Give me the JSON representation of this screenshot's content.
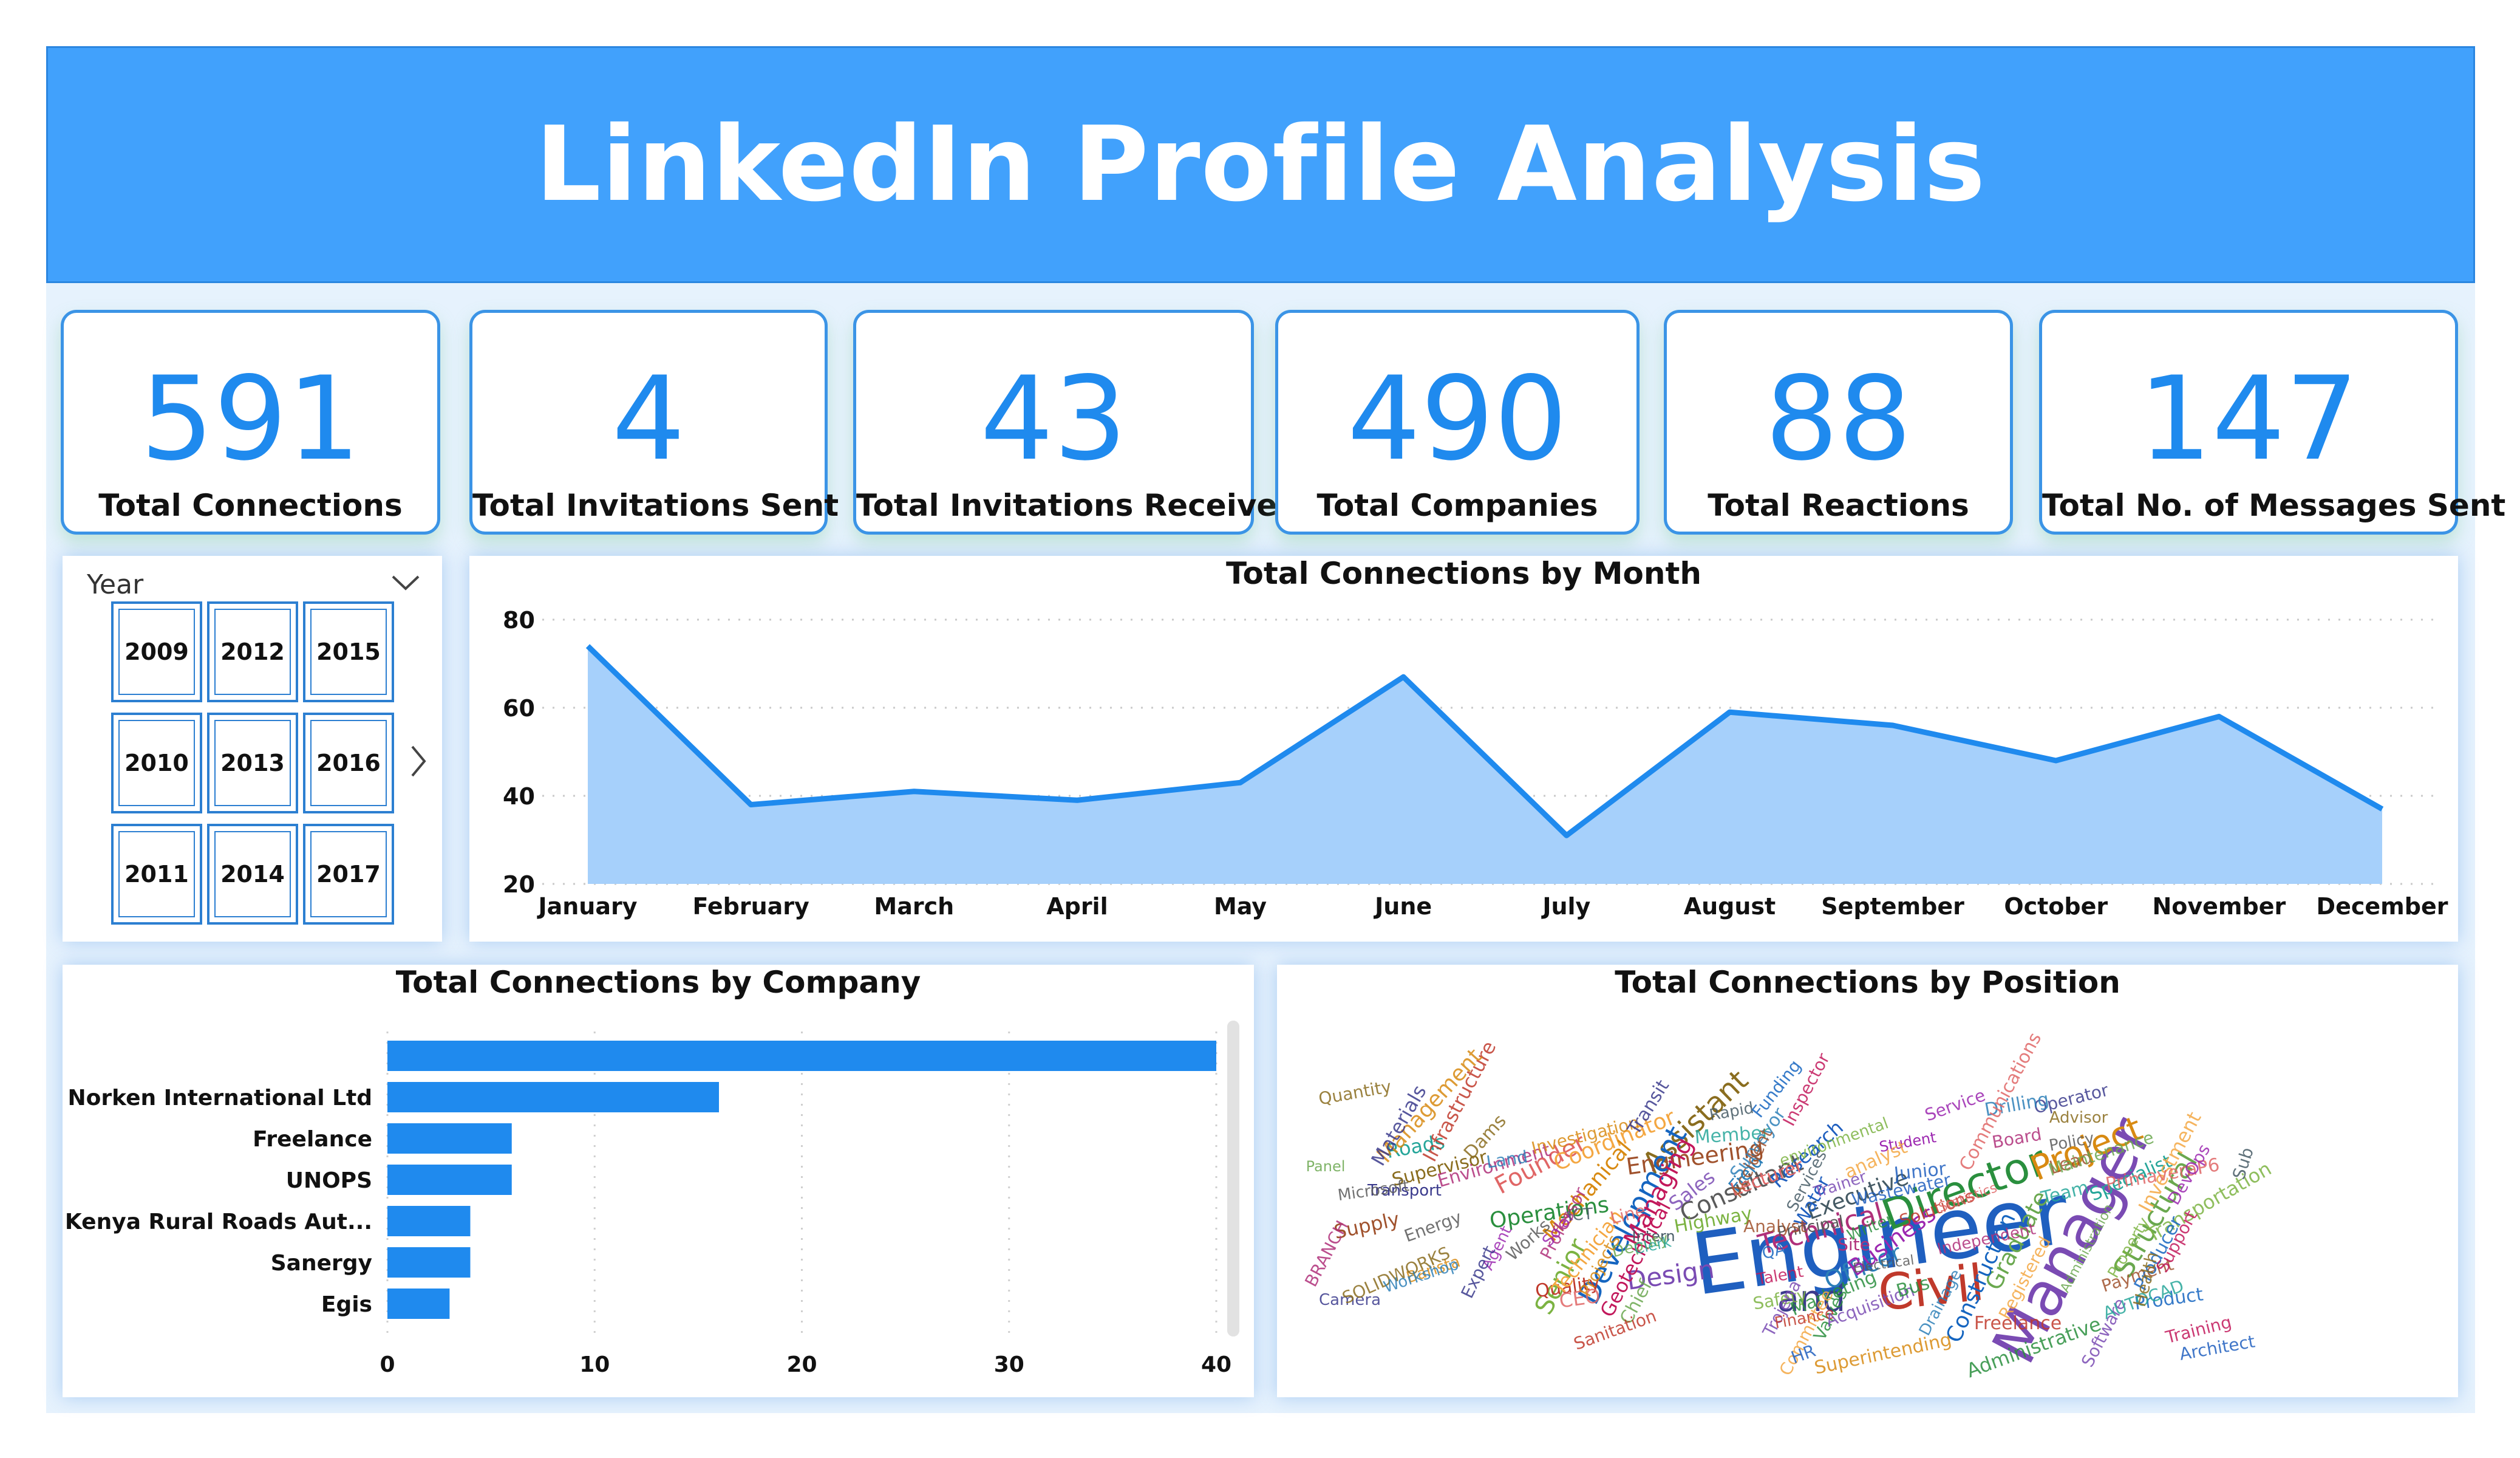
{
  "header": {
    "title": "LinkedIn Profile Analysis"
  },
  "kpis": [
    {
      "value": "591",
      "label": "Total Connections"
    },
    {
      "value": "4",
      "label": "Total Invitations Sent"
    },
    {
      "value": "43",
      "label": "Total Invitations Received"
    },
    {
      "value": "490",
      "label": "Total Companies"
    },
    {
      "value": "88",
      "label": "Total Reactions"
    },
    {
      "value": "147",
      "label": "Total No. of Messages Sent"
    }
  ],
  "slicer": {
    "title": "Year",
    "years": [
      "2009",
      "2012",
      "2015",
      "2010",
      "2013",
      "2016",
      "2011",
      "2014",
      "2017"
    ]
  },
  "colors": {
    "accent": "#1f8aee",
    "header": "#41a1fc",
    "area_fill": "#a6d0fb"
  },
  "chart_data": [
    {
      "type": "area",
      "title": "Total Connections by Month",
      "categories": [
        "January",
        "February",
        "March",
        "April",
        "May",
        "June",
        "July",
        "August",
        "September",
        "October",
        "November",
        "December"
      ],
      "values": [
        74,
        38,
        41,
        39,
        43,
        67,
        31,
        59,
        56,
        48,
        58,
        37
      ],
      "ylim": [
        20,
        80
      ],
      "yticks": [
        "20",
        "40",
        "60",
        "80"
      ],
      "grid": true
    },
    {
      "type": "bar",
      "orientation": "horizontal",
      "title": "Total Connections by Company",
      "categories": [
        "",
        "Norken International Ltd",
        "Freelance",
        "UNOPS",
        "Kenya Rural Roads Aut...",
        "Sanergy",
        "Egis"
      ],
      "values": [
        40,
        16,
        6,
        6,
        4,
        4,
        3
      ],
      "xlim": [
        0,
        40
      ],
      "xticks": [
        "0",
        "10",
        "20",
        "30",
        "40"
      ],
      "grid": true
    }
  ],
  "position_cloud": {
    "title": "Total Connections by Position",
    "words": [
      "Engineer",
      "Manager",
      "Director",
      "Civil",
      "Project",
      "and",
      "Assistant",
      "Officer",
      "Technical",
      "Consultant",
      "Structural",
      "Founder",
      "Business",
      "Executive",
      "Specialist",
      "Engineering",
      "Development",
      "Managing",
      "Senior",
      "Coordinator",
      "Research",
      "Design",
      "Operations",
      "Quality",
      "Mechanical",
      "Transport",
      "Supervisor",
      "Field",
      "Site",
      "Principal",
      "Graduate",
      "Lecturer",
      "Student",
      "Intern",
      "Roads",
      "Supply",
      "Construction",
      "Geotechnical",
      "Highway",
      "Technician",
      "Water",
      "Sales",
      "Marketing",
      "Infrastructure",
      "Management",
      "Materials",
      "Quantity",
      "Surveyor",
      "Environment",
      "Energy",
      "Chief",
      "CEO",
      "Agent",
      "Services",
      "Team",
      "Lead",
      "Product",
      "Training",
      "Transportation",
      "Investment",
      "Architect",
      "Software",
      "Administrative",
      "Freelance",
      "Superintending",
      "Operator",
      "Advisor",
      "Drilling",
      "Board",
      "Policy",
      "Maintenance",
      "Communications",
      "Service",
      "Rapid",
      "Member",
      "Accident",
      "Funding",
      "Inspector",
      "environmental",
      "analyst",
      "Junior",
      "Trainer",
      "Writer",
      "Solutions",
      "Investigation",
      "Transit",
      "Dams",
      "Land",
      "Professor",
      "Works",
      "Deputy",
      "Line",
      "Solar",
      "ICT",
      "Clerk",
      "Analyst",
      "QA",
      "Talent",
      "Safety",
      "Committee",
      "HR",
      "Trojena",
      "Valves",
      "Finance",
      "Barista",
      "Camera",
      "SOLIDWORKS",
      "Workshop",
      "BRANCH",
      "Microsoft",
      "Panel",
      "PrimaveraP6",
      "DevOps",
      "Sub",
      "AUTOCAD",
      "Payment",
      "Producer",
      "Support",
      "Property",
      "Registered",
      "Wastewater",
      "Acquisition",
      "Bus",
      "Sanitation",
      "Projects",
      "Expert",
      "Health",
      "Drainage",
      "Independent",
      "Electrical",
      "Administration",
      "Statistics"
    ]
  }
}
